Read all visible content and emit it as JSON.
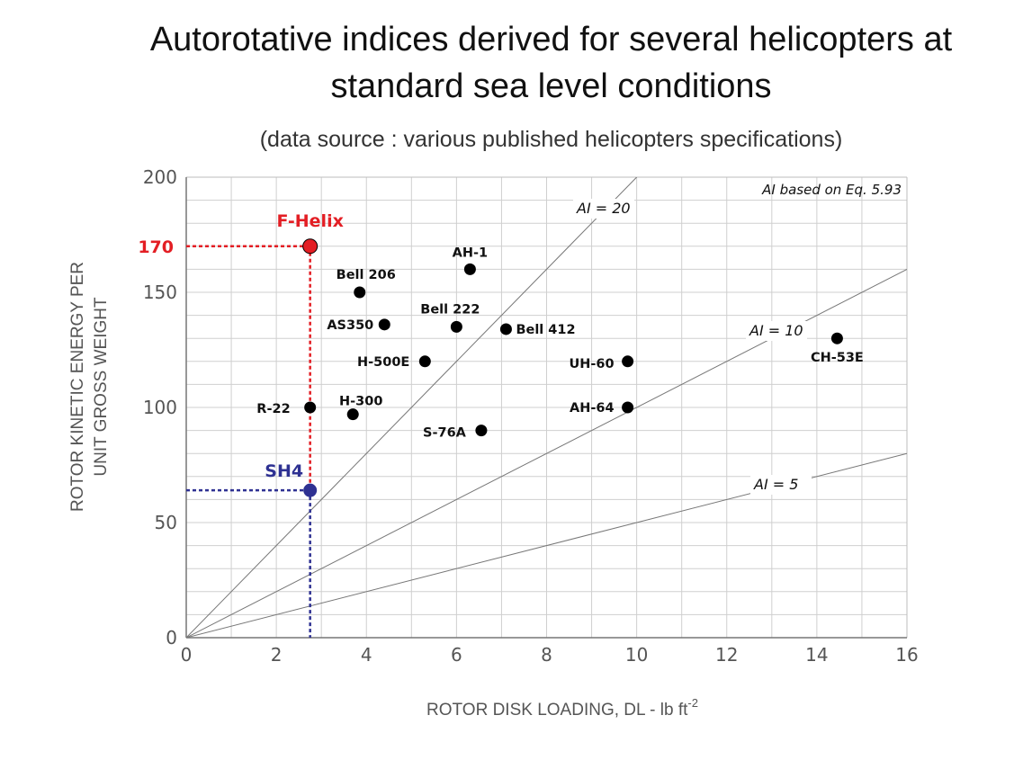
{
  "title_line1": "Autorotative indices derived for several helicopters at",
  "title_line2": "standard sea level conditions",
  "subtitle": "(data source : various published helicopters specifications)",
  "chart_data": {
    "type": "scatter",
    "title": "Autorotative indices derived for several helicopters at standard sea level conditions",
    "subtitle": "(data source : various published helicopters specifications)",
    "xlabel": "ROTOR DISK LOADING, DL - lb ft",
    "xlabel_sup": "-2",
    "ylabel_line1": "ROTOR KINETIC ENERGY PER",
    "ylabel_line2": "UNIT GROSS WEIGHT",
    "xlim": [
      0,
      16
    ],
    "ylim": [
      0,
      200
    ],
    "x_ticks": [
      0,
      2,
      4,
      6,
      8,
      10,
      12,
      14,
      16
    ],
    "y_ticks": [
      0,
      50,
      100,
      150,
      200
    ],
    "grid": true,
    "note": "AI based on Eq. 5.93",
    "points": [
      {
        "label": "R-22",
        "x": 2.75,
        "y": 100
      },
      {
        "label": "H-300",
        "x": 3.7,
        "y": 97
      },
      {
        "label": "Bell 206",
        "x": 3.85,
        "y": 150
      },
      {
        "label": "AS350",
        "x": 4.4,
        "y": 136
      },
      {
        "label": "H-500E",
        "x": 5.3,
        "y": 120
      },
      {
        "label": "Bell 222",
        "x": 6.0,
        "y": 135
      },
      {
        "label": "AH-1",
        "x": 6.3,
        "y": 160
      },
      {
        "label": "S-76A",
        "x": 6.55,
        "y": 90
      },
      {
        "label": "Bell 412",
        "x": 7.1,
        "y": 134
      },
      {
        "label": "UH-60",
        "x": 9.8,
        "y": 120
      },
      {
        "label": "AH-64",
        "x": 9.8,
        "y": 100
      },
      {
        "label": "CH-53E",
        "x": 14.45,
        "y": 130
      }
    ],
    "highlighted": [
      {
        "label": "F-Helix",
        "x": 2.75,
        "y": 170,
        "color": "#e31e24",
        "value_label": "170"
      },
      {
        "label": "SH4",
        "x": 2.75,
        "y": 64,
        "color": "#2e3192"
      }
    ],
    "reference_lines": [
      {
        "label": "AI = 20",
        "slope": 20
      },
      {
        "label": "AI = 10",
        "slope": 10
      },
      {
        "label": "AI = 5",
        "slope": 5
      }
    ]
  }
}
